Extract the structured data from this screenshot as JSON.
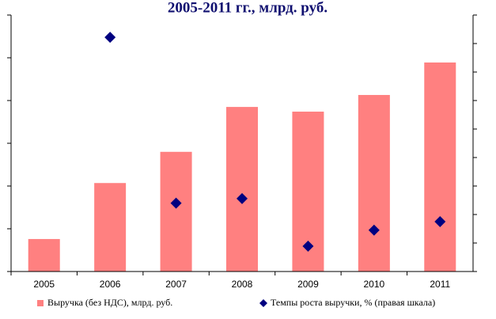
{
  "chart_data": {
    "type": "bar",
    "title": "2005-2011 гг., млрд. руб.",
    "categories": [
      "2005",
      "2006",
      "2007",
      "2008",
      "2009",
      "2010",
      "2011"
    ],
    "series": [
      {
        "name": "Выручка (без НДС), млрд. руб.",
        "color": "#ff8080",
        "type": "bar",
        "values": [
          0.76,
          2.07,
          2.8,
          3.85,
          3.74,
          4.13,
          4.89
        ]
      },
      {
        "name": "Темпы роста выручки, % (правая шкала)",
        "color": "#000080",
        "type": "scatter",
        "axis": "y2",
        "values": [
          null,
          8.22,
          2.4,
          2.56,
          0.89,
          1.45,
          1.75
        ]
      }
    ],
    "ylim": [
      0,
      6
    ],
    "yticks": [
      0,
      1,
      2,
      3,
      4,
      5,
      6
    ],
    "y2lim": [
      0,
      9
    ],
    "y2ticks": [
      0,
      1,
      2,
      3,
      4,
      5,
      6,
      7,
      8,
      9
    ],
    "legend": "bottom"
  }
}
